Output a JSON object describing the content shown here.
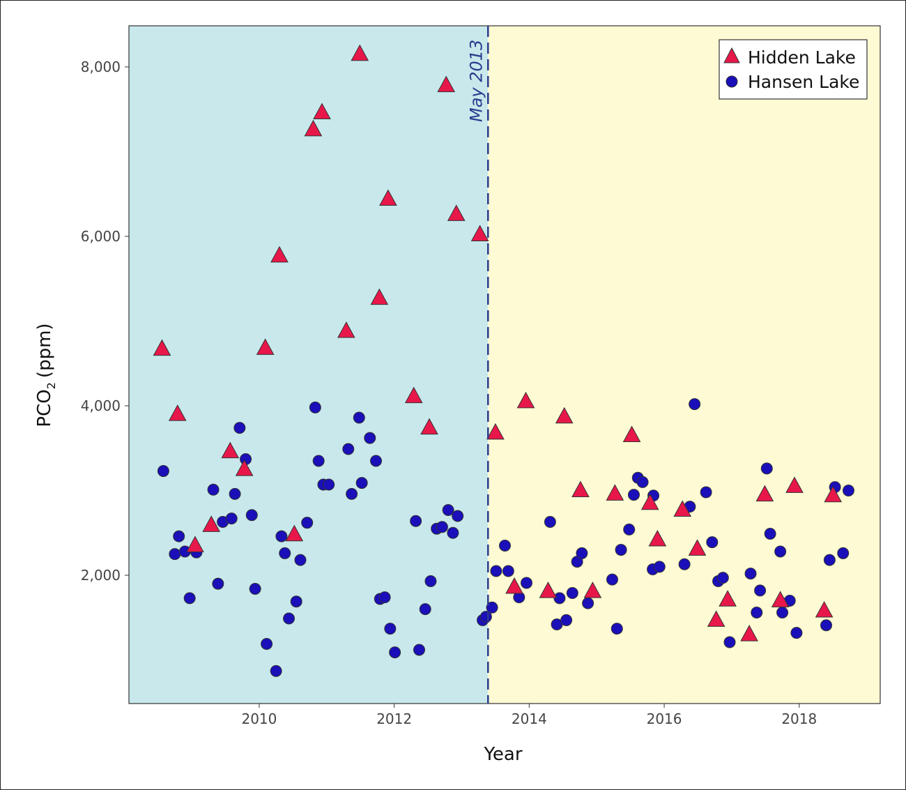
{
  "chart_data": {
    "type": "scatter",
    "xlabel": "Year",
    "ylabel": "PCO",
    "ylabel_subscript": "2",
    "ylabel_unit": "(ppm)",
    "xlim": [
      2008.07,
      2019.2
    ],
    "ylim": [
      486,
      8485
    ],
    "x_ticks": [
      2010,
      2012,
      2014,
      2016,
      2018
    ],
    "x_tick_labels": [
      "2010",
      "2012",
      "2014",
      "2016",
      "2018"
    ],
    "y_ticks": [
      2000,
      4000,
      6000,
      8000
    ],
    "y_tick_labels": [
      "2,000",
      "4,000",
      "6,000",
      "8,000"
    ],
    "grid": false,
    "legend_position": "top-right",
    "regions": [
      {
        "from": 2008.07,
        "to": 2013.39,
        "color": "#c8e8ec"
      },
      {
        "from": 2013.39,
        "to": 2019.2,
        "color": "#fefad4"
      }
    ],
    "vline": {
      "x": 2013.39,
      "label": "May 2013",
      "color": "#2a3a8c"
    },
    "series": [
      {
        "name": "Hidden Lake",
        "marker": "triangle",
        "color": "#e8174a",
        "points": [
          [
            2008.56,
            4670
          ],
          [
            2008.79,
            3900
          ],
          [
            2009.05,
            2350
          ],
          [
            2009.29,
            2590
          ],
          [
            2009.57,
            3460
          ],
          [
            2009.78,
            3250
          ],
          [
            2010.09,
            4680
          ],
          [
            2010.3,
            5770
          ],
          [
            2010.52,
            2480
          ],
          [
            2010.8,
            7260
          ],
          [
            2010.93,
            7460
          ],
          [
            2011.29,
            4880
          ],
          [
            2011.49,
            8150
          ],
          [
            2011.78,
            5270
          ],
          [
            2011.91,
            6440
          ],
          [
            2012.29,
            4110
          ],
          [
            2012.52,
            3740
          ],
          [
            2012.77,
            7780
          ],
          [
            2012.92,
            6260
          ],
          [
            2013.27,
            6020
          ],
          [
            2013.5,
            3680
          ],
          [
            2013.95,
            4050
          ],
          [
            2013.78,
            1860
          ],
          [
            2014.28,
            1810
          ],
          [
            2014.52,
            3870
          ],
          [
            2014.76,
            3000
          ],
          [
            2014.94,
            1810
          ],
          [
            2015.27,
            2960
          ],
          [
            2015.52,
            3650
          ],
          [
            2015.79,
            2850
          ],
          [
            2015.9,
            2420
          ],
          [
            2016.27,
            2770
          ],
          [
            2016.49,
            2310
          ],
          [
            2016.77,
            1470
          ],
          [
            2016.94,
            1710
          ],
          [
            2017.26,
            1300
          ],
          [
            2017.49,
            2950
          ],
          [
            2017.72,
            1700
          ],
          [
            2017.93,
            3050
          ],
          [
            2018.37,
            1580
          ],
          [
            2018.5,
            2940
          ]
        ]
      },
      {
        "name": "Hansen Lake",
        "marker": "circle",
        "color": "#1a0fb8",
        "points": [
          [
            2008.58,
            3230
          ],
          [
            2008.75,
            2250
          ],
          [
            2008.81,
            2460
          ],
          [
            2008.9,
            2280
          ],
          [
            2008.97,
            1730
          ],
          [
            2009.07,
            2270
          ],
          [
            2009.32,
            3010
          ],
          [
            2009.39,
            1900
          ],
          [
            2009.46,
            2630
          ],
          [
            2009.59,
            2670
          ],
          [
            2009.64,
            2960
          ],
          [
            2009.71,
            3740
          ],
          [
            2009.8,
            3370
          ],
          [
            2009.89,
            2710
          ],
          [
            2009.94,
            1840
          ],
          [
            2010.11,
            1190
          ],
          [
            2010.25,
            870
          ],
          [
            2010.33,
            2460
          ],
          [
            2010.38,
            2260
          ],
          [
            2010.44,
            1490
          ],
          [
            2010.55,
            1690
          ],
          [
            2010.61,
            2180
          ],
          [
            2010.71,
            2620
          ],
          [
            2010.83,
            3980
          ],
          [
            2010.88,
            3350
          ],
          [
            2010.95,
            3070
          ],
          [
            2011.03,
            3070
          ],
          [
            2011.32,
            3490
          ],
          [
            2011.37,
            2960
          ],
          [
            2011.48,
            3860
          ],
          [
            2011.52,
            3090
          ],
          [
            2011.64,
            3620
          ],
          [
            2011.73,
            3350
          ],
          [
            2011.79,
            1720
          ],
          [
            2011.86,
            1740
          ],
          [
            2011.94,
            1370
          ],
          [
            2012.01,
            1090
          ],
          [
            2012.32,
            2640
          ],
          [
            2012.37,
            1120
          ],
          [
            2012.46,
            1600
          ],
          [
            2012.54,
            1930
          ],
          [
            2012.63,
            2550
          ],
          [
            2012.71,
            2570
          ],
          [
            2012.8,
            2770
          ],
          [
            2012.87,
            2500
          ],
          [
            2012.94,
            2700
          ],
          [
            2013.31,
            1470
          ],
          [
            2013.36,
            1510
          ],
          [
            2013.45,
            1620
          ],
          [
            2013.51,
            2050
          ],
          [
            2013.64,
            2350
          ],
          [
            2013.69,
            2050
          ],
          [
            2013.85,
            1740
          ],
          [
            2013.96,
            1910
          ],
          [
            2014.31,
            2630
          ],
          [
            2014.41,
            1420
          ],
          [
            2014.45,
            1730
          ],
          [
            2014.55,
            1470
          ],
          [
            2014.64,
            1790
          ],
          [
            2014.71,
            2160
          ],
          [
            2014.78,
            2260
          ],
          [
            2014.87,
            1670
          ],
          [
            2015.23,
            1950
          ],
          [
            2015.3,
            1370
          ],
          [
            2015.36,
            2300
          ],
          [
            2015.48,
            2540
          ],
          [
            2015.55,
            2950
          ],
          [
            2015.61,
            3150
          ],
          [
            2015.68,
            3100
          ],
          [
            2015.83,
            2070
          ],
          [
            2015.84,
            2940
          ],
          [
            2015.93,
            2100
          ],
          [
            2016.3,
            2130
          ],
          [
            2016.38,
            2810
          ],
          [
            2016.45,
            4020
          ],
          [
            2016.62,
            2980
          ],
          [
            2016.71,
            2390
          ],
          [
            2016.8,
            1930
          ],
          [
            2016.87,
            1970
          ],
          [
            2016.97,
            1210
          ],
          [
            2017.28,
            2020
          ],
          [
            2017.37,
            1560
          ],
          [
            2017.42,
            1820
          ],
          [
            2017.52,
            3260
          ],
          [
            2017.57,
            2490
          ],
          [
            2017.72,
            2280
          ],
          [
            2017.75,
            1560
          ],
          [
            2017.86,
            1700
          ],
          [
            2017.96,
            1320
          ],
          [
            2018.4,
            1410
          ],
          [
            2018.45,
            2180
          ],
          [
            2018.53,
            3040
          ],
          [
            2018.65,
            2260
          ],
          [
            2018.73,
            3000
          ]
        ]
      }
    ]
  }
}
